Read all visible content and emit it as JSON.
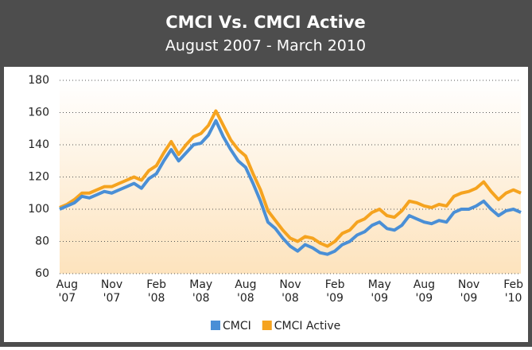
{
  "chart_data": {
    "type": "line",
    "title": "CMCI Vs. CMCI Active",
    "subtitle": "August 2007 - March 2010",
    "categories": [
      null,
      "Aug '07",
      null,
      null,
      null,
      null,
      null,
      "Nov '07",
      null,
      null,
      null,
      null,
      null,
      "Feb '08",
      null,
      null,
      null,
      null,
      null,
      "May '08",
      null,
      null,
      null,
      null,
      null,
      "Aug '08",
      null,
      null,
      null,
      null,
      null,
      "Nov '08",
      null,
      null,
      null,
      null,
      null,
      "Feb '09",
      null,
      null,
      null,
      null,
      null,
      "May '09",
      null,
      null,
      null,
      null,
      null,
      "Aug '09",
      null,
      null,
      null,
      null,
      null,
      "Nov '09",
      null,
      null,
      null,
      null,
      null,
      "Feb '10",
      null
    ],
    "series": [
      {
        "name": "CMCI",
        "color": "#4a8fd6",
        "values": [
          100,
          102,
          104,
          108,
          107,
          109,
          111,
          110,
          112,
          114,
          116,
          113,
          119,
          122,
          130,
          137,
          130,
          135,
          140,
          141,
          146,
          155,
          145,
          137,
          130,
          126,
          116,
          105,
          92,
          88,
          82,
          77,
          74,
          78,
          76,
          73,
          72,
          74,
          78,
          80,
          84,
          86,
          90,
          92,
          88,
          87,
          90,
          96,
          94,
          92,
          91,
          93,
          92,
          98,
          100,
          100,
          102,
          105,
          100,
          96,
          99,
          100,
          98
        ]
      },
      {
        "name": "CMCI Active",
        "color": "#f5a31f",
        "values": [
          101,
          103,
          106,
          110,
          110,
          112,
          114,
          114,
          116,
          118,
          120,
          118,
          124,
          127,
          135,
          142,
          134,
          140,
          145,
          147,
          152,
          161,
          152,
          143,
          137,
          133,
          122,
          112,
          99,
          93,
          87,
          82,
          80,
          83,
          82,
          79,
          77,
          80,
          85,
          87,
          92,
          94,
          98,
          100,
          96,
          95,
          99,
          105,
          104,
          102,
          101,
          103,
          102,
          108,
          110,
          111,
          113,
          117,
          111,
          106,
          110,
          112,
          110
        ]
      }
    ],
    "ylim": [
      60,
      180
    ],
    "yticks": [
      60,
      80,
      100,
      120,
      140,
      160,
      180
    ],
    "grid": true
  }
}
